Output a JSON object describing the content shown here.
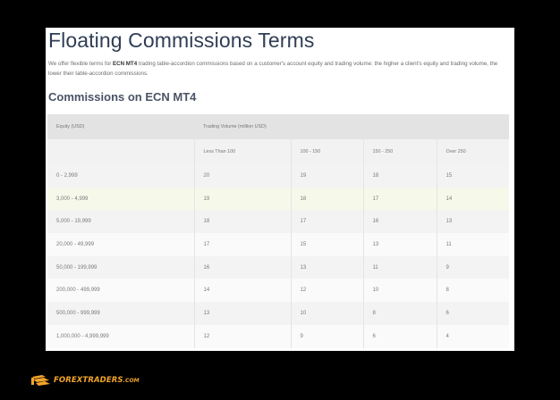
{
  "page": {
    "title": "Floating Commissions Terms",
    "intro_prefix": "We offer flexible terms for ",
    "intro_bold": "ECN MT4",
    "intro_rest": " trading table-accordion commissions based on a customer's account equity and trading volume: the higher a client's equity and trading volume, the lower their table-accordion commissions.",
    "section_title": "Commissions on ECN MT4"
  },
  "table": {
    "header_equity": "Equity (USD)",
    "header_volume": "Trading Volume (million USD)",
    "volume_columns": [
      "Less Than 100",
      "100 - 150",
      "150 - 250",
      "Over 250"
    ],
    "rows": [
      [
        "0 - 2,999",
        "20",
        "19",
        "18",
        "15"
      ],
      [
        "3,000 - 4,999",
        "19",
        "18",
        "17",
        "14"
      ],
      [
        "5,000 - 19,999",
        "18",
        "17",
        "16",
        "13"
      ],
      [
        "20,000 - 49,999",
        "17",
        "15",
        "13",
        "11"
      ],
      [
        "50,000 - 199,999",
        "16",
        "13",
        "11",
        "9"
      ],
      [
        "200,000 - 499,999",
        "14",
        "12",
        "10",
        "8"
      ],
      [
        "500,000 - 999,999",
        "13",
        "10",
        "8",
        "6"
      ],
      [
        "1,000,000 - 4,999,999",
        "12",
        "9",
        "6",
        "4"
      ]
    ],
    "highlighted_row": 1
  },
  "logo": {
    "text": "FOREXTRADERS",
    "domain": ".COM",
    "color": "#f2a52a"
  }
}
